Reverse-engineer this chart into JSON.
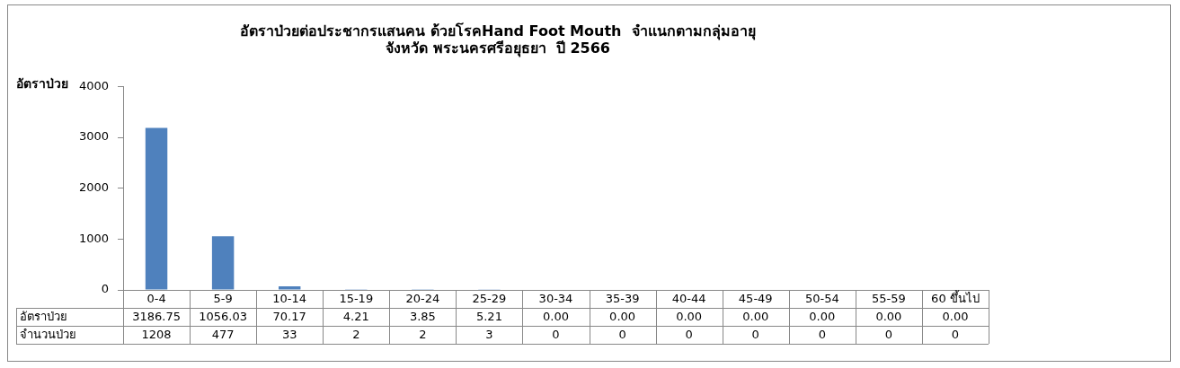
{
  "chart_data": {
    "type": "bar",
    "title": "อัตราป่วยต่อประชากรแสนคน ด้วยโรคHand Foot Mouth  จำแนกตามกลุ่มอายุ",
    "subtitle": "จังหวัด พระนครศรีอยุธยา  ปี 2566",
    "ylabel": "อัตราป่วย",
    "categories": [
      "0-4",
      "5-9",
      "10-14",
      "15-19",
      "20-24",
      "25-29",
      "30-34",
      "35-39",
      "40-44",
      "45-49",
      "50-54",
      "55-59",
      "60 ขึ้นไป"
    ],
    "series": [
      {
        "name": "อัตราป่วย",
        "color": "#4f81bd",
        "values": [
          3186.75,
          1056.03,
          70.17,
          4.21,
          3.85,
          5.21,
          0,
          0,
          0,
          0,
          0,
          0,
          0
        ],
        "value_labels": [
          "3186.75",
          "1056.03",
          "70.17",
          "4.21",
          "3.85",
          "5.21",
          "0.00",
          "0.00",
          "0.00",
          "0.00",
          "0.00",
          "0.00",
          "0.00"
        ]
      }
    ],
    "annotations": [
      "จำนวนป่วย",
      "1208",
      "477",
      "33",
      "2",
      "2",
      "3",
      "0",
      "0",
      "0",
      "0",
      "0",
      "0",
      "0"
    ],
    "ylim": [
      0,
      4000
    ],
    "yticks": [
      0,
      1000,
      2000,
      3000,
      4000
    ],
    "grid": false,
    "legend": false
  }
}
